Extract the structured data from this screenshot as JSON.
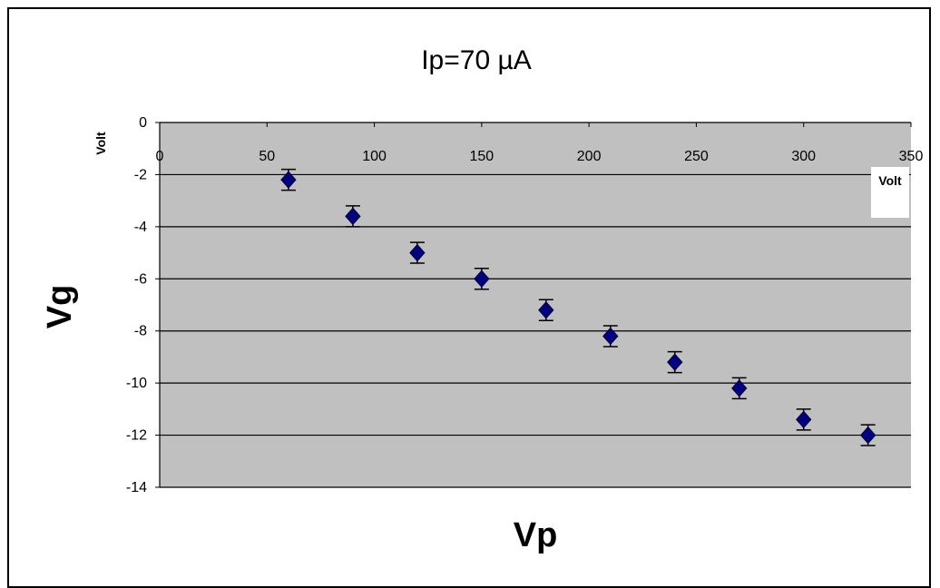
{
  "chart_data": {
    "type": "scatter",
    "title": "Ip=70 µA",
    "xlabel": "Vp",
    "ylabel": "Vg",
    "x_unit": "Volt",
    "y_unit": "Volt",
    "xlim": [
      0,
      350
    ],
    "ylim": [
      -14,
      0
    ],
    "x_ticks": [
      0,
      50,
      100,
      150,
      200,
      250,
      300,
      350
    ],
    "y_ticks": [
      0,
      -2,
      -4,
      -6,
      -8,
      -10,
      -12,
      -14
    ],
    "grid": true,
    "legend": false,
    "marker": "diamond",
    "colors": {
      "plot_bg": "#c0c0c0",
      "marker": "#000080",
      "grid": "#000000"
    },
    "error_bar": 0.4,
    "points": [
      {
        "x": 60,
        "y": -2.2
      },
      {
        "x": 90,
        "y": -3.6
      },
      {
        "x": 120,
        "y": -5.0
      },
      {
        "x": 150,
        "y": -6.0
      },
      {
        "x": 180,
        "y": -7.2
      },
      {
        "x": 210,
        "y": -8.2
      },
      {
        "x": 240,
        "y": -9.2
      },
      {
        "x": 270,
        "y": -10.2
      },
      {
        "x": 300,
        "y": -11.4
      },
      {
        "x": 330,
        "y": -12.0
      }
    ]
  }
}
